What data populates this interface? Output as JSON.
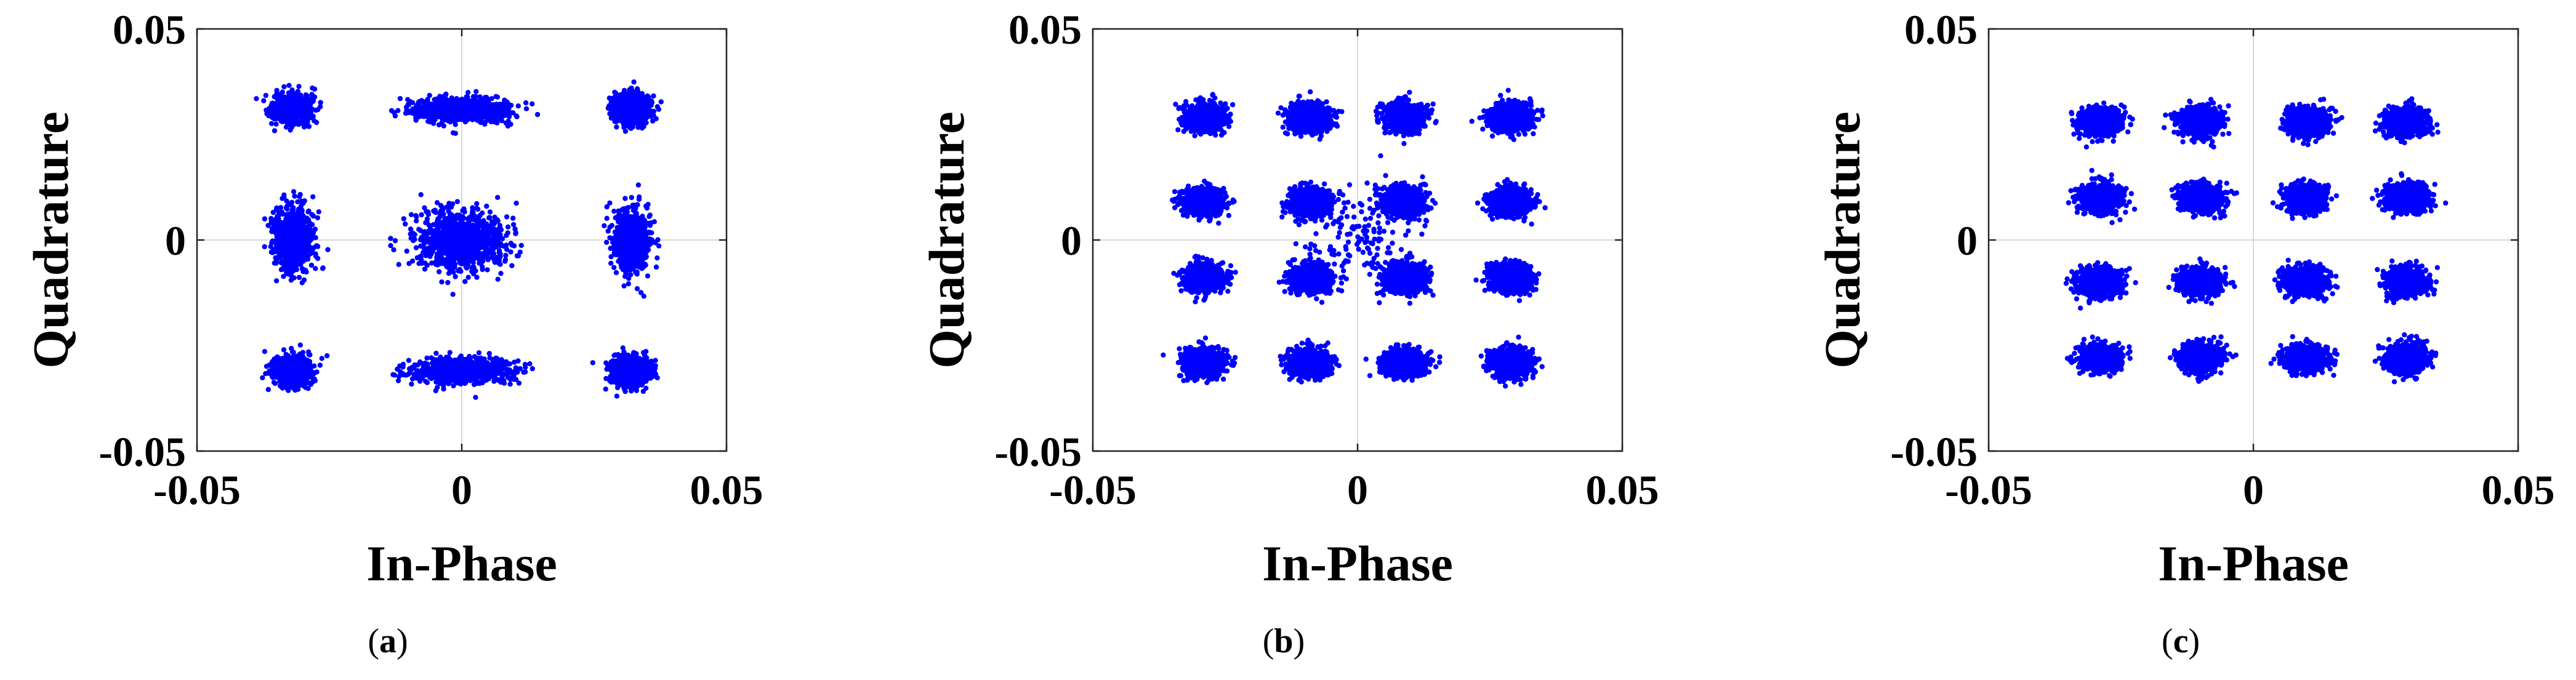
{
  "chart_data": [
    {
      "type": "scatter",
      "panel_label": "a",
      "xlabel": "In-Phase",
      "ylabel": "Quadrature",
      "xlim": [
        -0.05,
        0.05
      ],
      "ylim": [
        -0.05,
        0.05
      ],
      "x_ticks": [
        "-0.05",
        "0",
        "0.05"
      ],
      "y_ticks": [
        "0.05",
        "0",
        "-0.05"
      ],
      "grid": "zero lines only",
      "marker_color": "#0000ff",
      "constellation": "3x3 grid of noisy symbol clusters",
      "clusters": [
        {
          "x": -0.032,
          "y": 0.031,
          "sx": 0.0017,
          "sy": 0.0017
        },
        {
          "x": 0.0,
          "y": 0.031,
          "sx": 0.0043,
          "sy": 0.0014
        },
        {
          "x": 0.032,
          "y": 0.031,
          "sx": 0.0017,
          "sy": 0.0017
        },
        {
          "x": -0.032,
          "y": 0.0,
          "sx": 0.0017,
          "sy": 0.0036
        },
        {
          "x": 0.0,
          "y": 0.0,
          "sx": 0.0043,
          "sy": 0.0036
        },
        {
          "x": 0.032,
          "y": 0.0,
          "sx": 0.0017,
          "sy": 0.0036
        },
        {
          "x": -0.032,
          "y": -0.031,
          "sx": 0.0017,
          "sy": 0.0017
        },
        {
          "x": 0.0,
          "y": -0.031,
          "sx": 0.0043,
          "sy": 0.0014
        },
        {
          "x": 0.032,
          "y": -0.031,
          "sx": 0.0017,
          "sy": 0.0017
        }
      ]
    },
    {
      "type": "scatter",
      "panel_label": "b",
      "xlabel": "In-Phase",
      "ylabel": "Quadrature",
      "xlim": [
        -0.05,
        0.05
      ],
      "ylim": [
        -0.05,
        0.05
      ],
      "x_ticks": [
        "-0.05",
        "0",
        "0.05"
      ],
      "y_ticks": [
        "0.05",
        "0",
        "-0.05"
      ],
      "grid": "zero lines only",
      "marker_color": "#0000ff",
      "constellation": "4x4 grid (16-QAM) of noisy symbol clusters with stray points near origin",
      "clusters": [
        {
          "x": -0.029,
          "y": 0.029,
          "sx": 0.0019,
          "sy": 0.0016
        },
        {
          "x": -0.009,
          "y": 0.029,
          "sx": 0.0019,
          "sy": 0.0016
        },
        {
          "x": 0.009,
          "y": 0.029,
          "sx": 0.0019,
          "sy": 0.0016
        },
        {
          "x": 0.029,
          "y": 0.029,
          "sx": 0.0019,
          "sy": 0.0016
        },
        {
          "x": -0.029,
          "y": 0.009,
          "sx": 0.0019,
          "sy": 0.0016
        },
        {
          "x": -0.009,
          "y": 0.009,
          "sx": 0.0019,
          "sy": 0.0016
        },
        {
          "x": 0.009,
          "y": 0.009,
          "sx": 0.0019,
          "sy": 0.0016
        },
        {
          "x": 0.029,
          "y": 0.009,
          "sx": 0.0019,
          "sy": 0.0016
        },
        {
          "x": -0.029,
          "y": -0.009,
          "sx": 0.0019,
          "sy": 0.0016
        },
        {
          "x": -0.009,
          "y": -0.009,
          "sx": 0.0019,
          "sy": 0.0016
        },
        {
          "x": 0.009,
          "y": -0.009,
          "sx": 0.0019,
          "sy": 0.0016
        },
        {
          "x": 0.029,
          "y": -0.009,
          "sx": 0.0019,
          "sy": 0.0016
        },
        {
          "x": -0.029,
          "y": -0.029,
          "sx": 0.0019,
          "sy": 0.0016
        },
        {
          "x": -0.009,
          "y": -0.029,
          "sx": 0.0019,
          "sy": 0.0016
        },
        {
          "x": 0.009,
          "y": -0.029,
          "sx": 0.0019,
          "sy": 0.0016
        },
        {
          "x": 0.029,
          "y": -0.029,
          "sx": 0.0019,
          "sy": 0.0016
        }
      ],
      "stray_cloud": {
        "x": 0.0,
        "y": 0.0,
        "sx": 0.005,
        "sy": 0.006
      }
    },
    {
      "type": "scatter",
      "panel_label": "c",
      "xlabel": "In-Phase",
      "ylabel": "Quadrature",
      "xlim": [
        -0.05,
        0.05
      ],
      "ylim": [
        -0.05,
        0.05
      ],
      "x_ticks": [
        "-0.05",
        "0",
        "0.05"
      ],
      "y_ticks": [
        "0.05",
        "0",
        "-0.05"
      ],
      "grid": "zero lines only",
      "marker_color": "#0000ff",
      "constellation": "4x4 grid (16-QAM) of noisy symbol clusters",
      "clusters": [
        {
          "x": -0.029,
          "y": 0.028,
          "sx": 0.0019,
          "sy": 0.0016
        },
        {
          "x": -0.01,
          "y": 0.028,
          "sx": 0.0019,
          "sy": 0.0016
        },
        {
          "x": 0.01,
          "y": 0.028,
          "sx": 0.0019,
          "sy": 0.0016
        },
        {
          "x": 0.029,
          "y": 0.028,
          "sx": 0.0019,
          "sy": 0.0016
        },
        {
          "x": -0.029,
          "y": 0.01,
          "sx": 0.0019,
          "sy": 0.0016
        },
        {
          "x": -0.01,
          "y": 0.01,
          "sx": 0.0019,
          "sy": 0.0016
        },
        {
          "x": 0.01,
          "y": 0.01,
          "sx": 0.0019,
          "sy": 0.0016
        },
        {
          "x": 0.029,
          "y": 0.01,
          "sx": 0.0019,
          "sy": 0.0016
        },
        {
          "x": -0.029,
          "y": -0.01,
          "sx": 0.0019,
          "sy": 0.0016
        },
        {
          "x": -0.01,
          "y": -0.01,
          "sx": 0.0019,
          "sy": 0.0016
        },
        {
          "x": 0.01,
          "y": -0.01,
          "sx": 0.0019,
          "sy": 0.0016
        },
        {
          "x": 0.029,
          "y": -0.01,
          "sx": 0.0019,
          "sy": 0.0016
        },
        {
          "x": -0.029,
          "y": -0.028,
          "sx": 0.0019,
          "sy": 0.0016
        },
        {
          "x": -0.01,
          "y": -0.028,
          "sx": 0.0019,
          "sy": 0.0016
        },
        {
          "x": 0.01,
          "y": -0.028,
          "sx": 0.0019,
          "sy": 0.0016
        },
        {
          "x": 0.029,
          "y": -0.028,
          "sx": 0.0019,
          "sy": 0.0016
        }
      ]
    }
  ]
}
